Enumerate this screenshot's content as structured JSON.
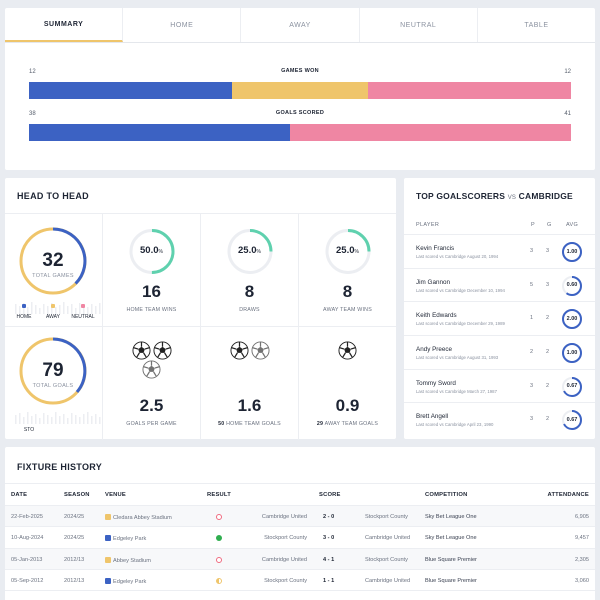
{
  "tabs": [
    {
      "label": "SUMMARY",
      "active": true
    },
    {
      "label": "HOME",
      "active": false
    },
    {
      "label": "AWAY",
      "active": false
    },
    {
      "label": "NEUTRAL",
      "active": false
    },
    {
      "label": "TABLE",
      "active": false
    }
  ],
  "games_won": {
    "label": "GAMES WON",
    "home": "12",
    "away": "12",
    "split": {
      "home": 12,
      "draw": 8,
      "away": 12
    }
  },
  "goals_scored": {
    "label": "GOALS SCORED",
    "home": "38",
    "away": "41",
    "split": {
      "home": 38,
      "away": 41
    }
  },
  "head_to_head": {
    "title": "HEAD TO HEAD",
    "total_games": {
      "value": "32",
      "label": "TOTAL GAMES"
    },
    "legend": {
      "home": "HOME",
      "away": "AWAY",
      "neutral": "NEUTRAL"
    },
    "total_goals": {
      "value": "79",
      "label": "TOTAL GOALS"
    },
    "sto_label": "STO",
    "home_wins": {
      "pct": "50.0",
      "value": "16",
      "label": "HOME TEAM WINS",
      "fraction": 0.5
    },
    "draws": {
      "pct": "25.0",
      "value": "8",
      "label": "DRAWS",
      "fraction": 0.25
    },
    "away_wins": {
      "pct": "25.0",
      "value": "8",
      "label": "AWAY TEAM WINS",
      "fraction": 0.25
    },
    "goals_per_game": {
      "value": "2.5",
      "label": "GOALS PER GAME"
    },
    "home_goals": {
      "value": "1.6",
      "count": "50",
      "label": "HOME TEAM GOALS"
    },
    "away_goals": {
      "value": "0.9",
      "count": "29",
      "label": "AWAY TEAM GOALS"
    },
    "pct_sign": "%"
  },
  "scorers": {
    "title": "TOP GOALSCORERS",
    "vs": "VS",
    "opponent": "CAMBRIDGE",
    "headers": {
      "player": "PLAYER",
      "p": "P",
      "g": "G",
      "avg": "AVG"
    },
    "rows": [
      {
        "name": "Kevin Francis",
        "sub": "Last scored vs Cambridge August 20, 1994",
        "p": "3",
        "g": "3",
        "avg": "1.00",
        "fraction": 1.0
      },
      {
        "name": "Jim Gannon",
        "sub": "Last scored vs Cambridge December 10, 1994",
        "p": "5",
        "g": "3",
        "avg": "0.60",
        "fraction": 0.6
      },
      {
        "name": "Keith Edwards",
        "sub": "Last scored vs Cambridge December 29, 1989",
        "p": "1",
        "g": "2",
        "avg": "2.00",
        "fraction": 1.0
      },
      {
        "name": "Andy Preece",
        "sub": "Last scored vs Cambridge August 31, 1993",
        "p": "2",
        "g": "2",
        "avg": "1.00",
        "fraction": 1.0
      },
      {
        "name": "Tommy Sword",
        "sub": "Last scored vs Cambridge March 27, 1987",
        "p": "3",
        "g": "2",
        "avg": "0.67",
        "fraction": 0.67
      },
      {
        "name": "Brett Angell",
        "sub": "Last scored vs Cambridge April 23, 1990",
        "p": "3",
        "g": "2",
        "avg": "0.67",
        "fraction": 0.67
      }
    ]
  },
  "fixtures": {
    "title": "FIXTURE HISTORY",
    "headers": {
      "date": "DATE",
      "season": "SEASON",
      "venue": "VENUE",
      "result": "RESULT",
      "score": "SCORE",
      "competition": "COMPETITION",
      "attendance": "ATTENDANCE"
    },
    "rows": [
      {
        "date": "22-Feb-2025",
        "season": "2024/25",
        "venue": "Cledara Abbey Stadium",
        "venue_color": "#efc56b",
        "result_color": "#ef6a7f",
        "result_type": "loss",
        "home": "Cambridge United",
        "score": "2 - 0",
        "away": "Stockport County",
        "competition": "Sky Bet League One",
        "attendance": "6,905"
      },
      {
        "date": "10-Aug-2024",
        "season": "2024/25",
        "venue": "Edgeley Park",
        "venue_color": "#3c62c3",
        "result_color": "#2fae4f",
        "result_type": "win",
        "home": "Stockport County",
        "score": "3 - 0",
        "away": "Cambridge United",
        "competition": "Sky Bet League One",
        "attendance": "9,457"
      },
      {
        "date": "05-Jan-2013",
        "season": "2012/13",
        "venue": "Abbey Stadium",
        "venue_color": "#efc56b",
        "result_color": "#ef6a7f",
        "result_type": "loss",
        "home": "Cambridge United",
        "score": "4 - 1",
        "away": "Stockport County",
        "competition": "Blue Square Premier",
        "attendance": "2,305"
      },
      {
        "date": "05-Sep-2012",
        "season": "2012/13",
        "venue": "Edgeley Park",
        "venue_color": "#3c62c3",
        "result_color": "#efc56b",
        "result_type": "draw",
        "home": "Stockport County",
        "score": "1 - 1",
        "away": "Cambridge United",
        "competition": "Blue Square Premier",
        "attendance": "3,060"
      }
    ]
  },
  "colors": {
    "home": "#3c62c3",
    "draw": "#efc56b",
    "away": "#ef86a3",
    "neutral": "#ef86a3",
    "ring_green": "#5fd1ae",
    "ring_track": "#eceef2"
  }
}
